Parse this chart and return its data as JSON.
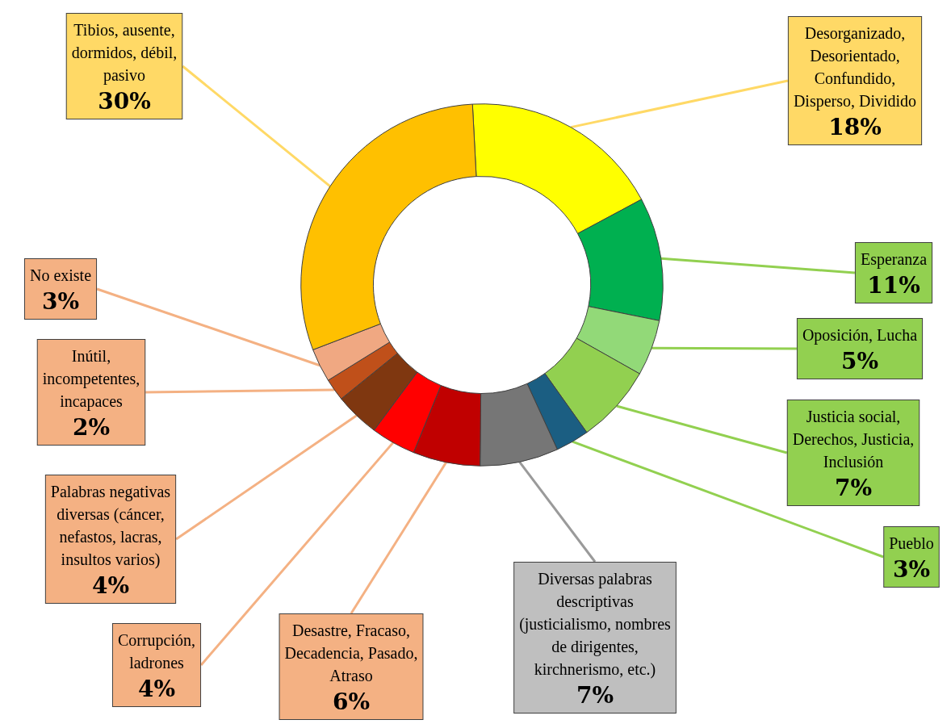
{
  "chart_data": {
    "type": "donut",
    "categories": [
      "Desorganizado, Desorientado, Confundido, Disperso, Dividido",
      "Esperanza",
      "Oposición, Lucha",
      "Justicia social, Derechos, Justicia, Inclusión",
      "Pueblo",
      "Diversas palabras descriptivas (justicialismo, nombres de dirigentes, kirchnerismo, etc.)",
      "Desastre, Fracaso, Decadencia, Pasado, Atraso",
      "Corrupción, ladrones",
      "Palabras negativas diversas (cáncer, nefastos, lacras, insultos varios)",
      "Inútil, incompetentes, incapaces",
      "No existe",
      "Tibios, ausente, dormidos, débil, pasivo"
    ],
    "values": [
      18,
      11,
      5,
      7,
      3,
      7,
      6,
      4,
      4,
      2,
      3,
      30
    ],
    "value_labels": [
      "18%",
      "11%",
      "5%",
      "7%",
      "3%",
      "7%",
      "6%",
      "4%",
      "4%",
      "2%",
      "3%",
      "30%"
    ],
    "colors": [
      "#ffff00",
      "#00b050",
      "#92d978",
      "#92d050",
      "#1b5e82",
      "#767676",
      "#c00000",
      "#ff0000",
      "#7f3710",
      "#c0501a",
      "#f0a882",
      "#ffc000"
    ],
    "legend": false
  }
}
